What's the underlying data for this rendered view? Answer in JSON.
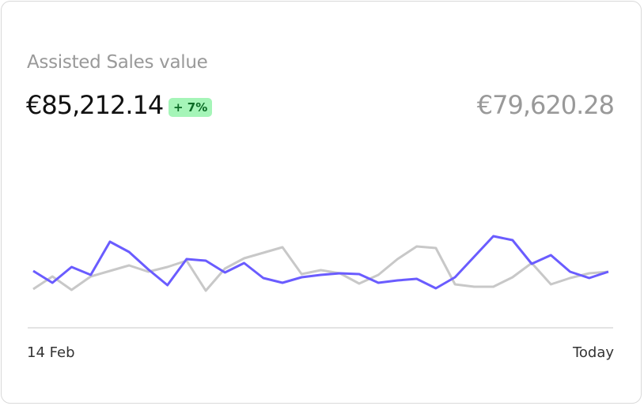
{
  "header": {
    "title": "Assisted Sales value",
    "current_value": "€85,212.14",
    "change_badge": "+ 7%",
    "previous_value": "€79,620.28"
  },
  "chart_data": {
    "type": "line",
    "x_labels": [
      "14 Feb",
      "Today"
    ],
    "ylim": [
      0,
      120
    ],
    "grid": false,
    "legend": "none",
    "series": [
      {
        "color": "#c8c8c8",
        "values": [
          34,
          50,
          33,
          50,
          57,
          64,
          56,
          62,
          70,
          32,
          60,
          73,
          80,
          87,
          53,
          58,
          54,
          41,
          52,
          72,
          88,
          86,
          40,
          37,
          37,
          49,
          67,
          40,
          48,
          54,
          56
        ]
      },
      {
        "color": "#6a5cff",
        "values": [
          57,
          42,
          62,
          52,
          94,
          81,
          59,
          39,
          72,
          70,
          55,
          67,
          48,
          42,
          49,
          52,
          54,
          53,
          42,
          45,
          47,
          35,
          49,
          75,
          101,
          96,
          66,
          77,
          56,
          48,
          56
        ]
      }
    ]
  }
}
